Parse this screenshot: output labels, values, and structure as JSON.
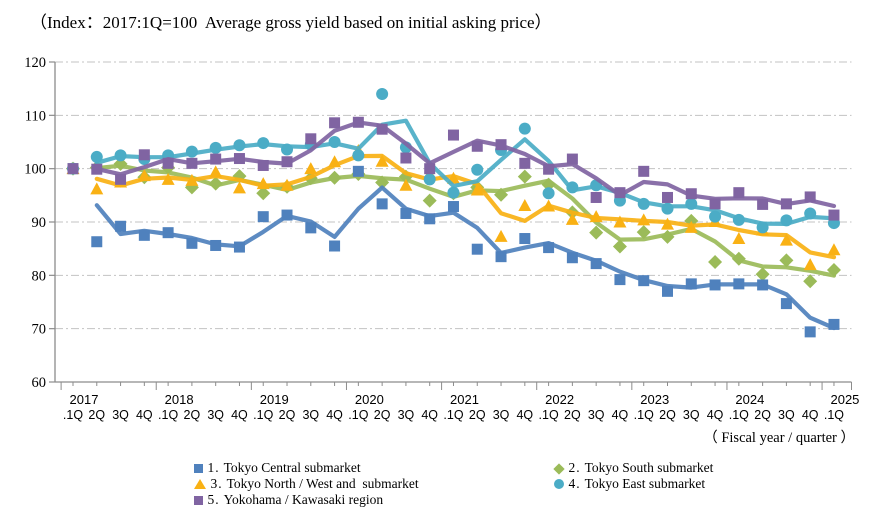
{
  "title": "（Index：2017:1Q=100  Average gross yield based on initial asking price）",
  "axis_note": "（ Fiscal year / quarter ）",
  "legend": [
    {
      "num": "1.",
      "label": "Tokyo Central submarket",
      "marker": "square",
      "color": "#4F81BD"
    },
    {
      "num": "2.",
      "label": "Tokyo South submarket",
      "marker": "diamond",
      "color": "#9BBB59"
    },
    {
      "num": "3.",
      "label": "Tokyo North / West and  submarket",
      "marker": "triangle",
      "color": "#F9B114"
    },
    {
      "num": "4.",
      "label": "Tokyo East submarket",
      "marker": "circle",
      "color": "#4BACC6"
    },
    {
      "num": "5.",
      "label": "Yokohama / Kawasaki region",
      "marker": "square",
      "color": "#8064A2"
    }
  ],
  "chart_data": {
    "type": "line",
    "title": "Average gross yield based on initial asking price (Index 2017:1Q=100)",
    "x_years": [
      "2017",
      "2018",
      "2019",
      "2020",
      "2021",
      "2022",
      "2023",
      "2024",
      "2025"
    ],
    "x_quarter_labels": [
      ".1Q",
      "2Q",
      "3Q",
      "4Q"
    ],
    "n_quarters": 33,
    "ylim": [
      60,
      120
    ],
    "y_ticks": [
      60,
      70,
      80,
      90,
      100,
      110,
      120
    ],
    "grid": "horizontal dashed",
    "legend_position": "bottom",
    "note": "markers = quarterly index values; bold lines = 2-quarter moving average",
    "draw_order": [
      1,
      2,
      0,
      3,
      4
    ],
    "series": [
      {
        "name": "1. Tokyo Central submarket",
        "marker": "square",
        "color": "#4F81BD",
        "values": [
          100,
          86.3,
          89.2,
          87.5,
          88.0,
          86.0,
          85.6,
          85.3,
          91.0,
          91.3,
          88.9,
          85.5,
          99.5,
          93.4,
          91.6,
          90.6,
          92.9,
          84.9,
          83.5,
          86.9,
          85.2,
          83.3,
          82.2,
          79.2,
          79.0,
          77.0,
          78.4,
          78.2,
          78.4,
          78.2,
          74.7,
          69.4,
          70.8
        ]
      },
      {
        "name": "2. Tokyo South submarket",
        "marker": "diamond",
        "color": "#9BBB59",
        "values": [
          100,
          100.2,
          100.9,
          98.4,
          100.2,
          96.5,
          97.2,
          98.6,
          95.4,
          96.6,
          98.2,
          98.3,
          99.0,
          97.4,
          98.5,
          94.0,
          95.4,
          96.5,
          95.1,
          98.5,
          97.0,
          91.8,
          88.0,
          85.4,
          88.1,
          87.2,
          90.2,
          82.5,
          83.1,
          80.2,
          82.8,
          78.9,
          81.0
        ]
      },
      {
        "name": "3. Tokyo North / West and submarket",
        "marker": "triangle",
        "color": "#F9B114",
        "values": [
          100,
          96.2,
          97.5,
          98.7,
          98.0,
          97.8,
          99.4,
          96.4,
          97.2,
          96.9,
          100.0,
          101.3,
          103.4,
          101.4,
          96.9,
          99.0,
          98.2,
          96.0,
          87.3,
          93.1,
          93.0,
          90.5,
          91.0,
          90.0,
          90.4,
          89.6,
          89.0,
          90.1,
          86.9,
          88.5,
          86.6,
          82.0,
          84.8
        ]
      },
      {
        "name": "4. Tokyo East submarket",
        "marker": "circle",
        "color": "#4BACC6",
        "values": [
          100,
          102.2,
          102.5,
          101.8,
          102.5,
          103.2,
          103.9,
          104.4,
          104.8,
          103.6,
          104.5,
          105.0,
          102.5,
          114.0,
          104.0,
          98.0,
          95.5,
          99.8,
          103.5,
          107.5,
          95.4,
          96.5,
          96.9,
          94.0,
          93.4,
          92.5,
          93.4,
          91.0,
          90.4,
          89.0,
          90.3,
          91.6,
          89.8
        ]
      },
      {
        "name": "5. Yokohama / Kawasaki region",
        "marker": "square",
        "color": "#8064A2",
        "values": [
          100,
          99.9,
          98.0,
          102.6,
          101.0,
          101.0,
          101.8,
          101.9,
          100.6,
          101.3,
          105.6,
          108.6,
          108.7,
          107.4,
          102.0,
          100.0,
          106.3,
          104.2,
          104.5,
          101.0,
          99.9,
          101.8,
          94.6,
          95.5,
          99.5,
          94.6,
          95.3,
          93.4,
          95.5,
          93.3,
          93.4,
          94.7,
          91.3
        ]
      }
    ]
  }
}
